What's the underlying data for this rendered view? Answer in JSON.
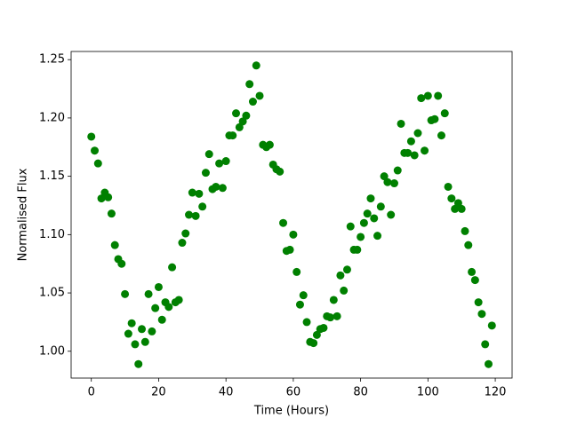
{
  "chart_data": {
    "type": "scatter",
    "xlabel": "Time (Hours)",
    "ylabel": "Normalised Flux",
    "x": [
      0,
      1,
      2,
      3,
      4,
      5,
      6,
      7,
      8,
      9,
      10,
      11,
      12,
      13,
      14,
      15,
      16,
      17,
      18,
      19,
      20,
      21,
      22,
      23,
      24,
      25,
      26,
      27,
      28,
      29,
      30,
      31,
      32,
      33,
      34,
      35,
      36,
      37,
      38,
      39,
      40,
      41,
      42,
      43,
      44,
      45,
      46,
      47,
      48,
      49,
      50,
      51,
      52,
      53,
      54,
      55,
      56,
      57,
      58,
      59,
      60,
      61,
      62,
      63,
      64,
      65,
      66,
      67,
      68,
      69,
      70,
      71,
      72,
      73,
      74,
      75,
      76,
      77,
      78,
      79,
      80,
      81,
      82,
      83,
      84,
      85,
      86,
      87,
      88,
      89,
      90,
      91,
      92,
      93,
      94,
      95,
      96,
      97,
      98,
      99,
      100,
      101,
      102,
      103,
      104,
      105,
      106,
      107,
      108,
      109,
      110,
      111,
      112,
      113,
      114,
      115,
      116,
      117,
      118,
      119
    ],
    "series": [
      {
        "name": "Flux",
        "color": "#008000",
        "values": [
          1.184,
          1.172,
          1.161,
          1.131,
          1.136,
          1.132,
          1.118,
          1.091,
          1.079,
          1.075,
          1.049,
          1.015,
          1.024,
          1.006,
          0.989,
          1.019,
          1.008,
          1.049,
          1.017,
          1.037,
          1.055,
          1.027,
          1.042,
          1.038,
          1.072,
          1.042,
          1.044,
          1.093,
          1.101,
          1.117,
          1.136,
          1.116,
          1.135,
          1.124,
          1.153,
          1.169,
          1.139,
          1.141,
          1.161,
          1.14,
          1.163,
          1.185,
          1.185,
          1.204,
          1.192,
          1.197,
          1.202,
          1.229,
          1.214,
          1.245,
          1.219,
          1.177,
          1.175,
          1.177,
          1.16,
          1.156,
          1.154,
          1.11,
          1.086,
          1.087,
          1.1,
          1.068,
          1.04,
          1.048,
          1.025,
          1.008,
          1.007,
          1.014,
          1.019,
          1.02,
          1.03,
          1.029,
          1.044,
          1.03,
          1.065,
          1.052,
          1.07,
          1.107,
          1.087,
          1.087,
          1.098,
          1.11,
          1.118,
          1.131,
          1.114,
          1.099,
          1.124,
          1.15,
          1.145,
          1.117,
          1.144,
          1.155,
          1.195,
          1.17,
          1.17,
          1.18,
          1.168,
          1.187,
          1.217,
          1.172,
          1.219,
          1.198,
          1.199,
          1.219,
          1.185,
          1.204,
          1.141,
          1.131,
          1.122,
          1.127,
          1.122,
          1.103,
          1.091,
          1.068,
          1.061,
          1.042,
          1.032,
          1.006,
          0.989,
          1.022
        ]
      }
    ],
    "xlim": [
      -6,
      125
    ],
    "xticks": [
      0,
      20,
      40,
      60,
      80,
      100,
      120
    ],
    "ylim": [
      0.977,
      1.257
    ],
    "yticks": [
      {
        "value": 1.0,
        "label": "1.00"
      },
      1.05,
      {
        "value": 1.1,
        "label": "1.10"
      },
      1.15,
      {
        "value": 1.2,
        "label": "1.20"
      },
      1.25
    ],
    "grid": false
  }
}
